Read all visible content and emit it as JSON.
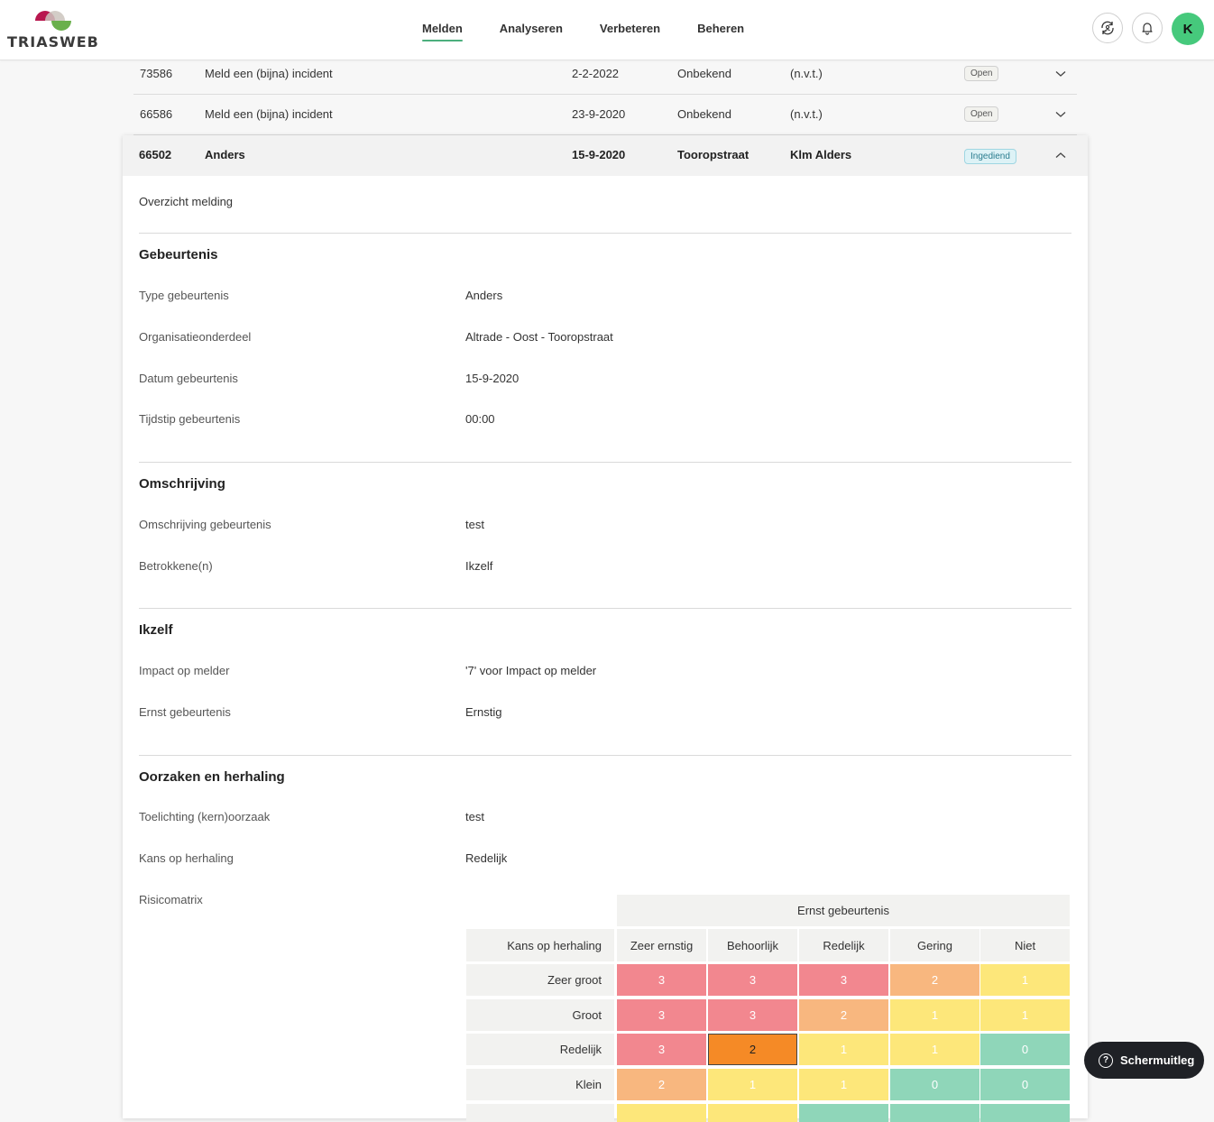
{
  "header": {
    "logo_text": "TRIASWEB",
    "nav": [
      {
        "label": "Melden",
        "active": true
      },
      {
        "label": "Analyseren",
        "active": false
      },
      {
        "label": "Verbeteren",
        "active": false
      },
      {
        "label": "Beheren",
        "active": false
      }
    ],
    "avatar_letter": "K",
    "avatar_color": "#46c97c",
    "accent_color": "#4caf7d"
  },
  "rows": [
    {
      "id": "73586",
      "type": "Meld een (bijna) incident",
      "date": "2-2-2022",
      "location": "Onbekend",
      "person": "(n.v.t.)",
      "status": "Open"
    },
    {
      "id": "66586",
      "type": "Meld een (bijna) incident",
      "date": "23-9-2020",
      "location": "Onbekend",
      "person": "(n.v.t.)",
      "status": "Open"
    }
  ],
  "expanded": {
    "id": "66502",
    "type": "Anders",
    "date": "15-9-2020",
    "location": "Tooropstraat",
    "person": "Klm Alders",
    "status": "Ingediend",
    "overview_label": "Overzicht melding",
    "sections": {
      "gebeurtenis": {
        "title": "Gebeurtenis",
        "fields": [
          {
            "label": "Type gebeurtenis",
            "value": "Anders"
          },
          {
            "label": "Organisatieonderdeel",
            "value": "Altrade - Oost - Tooropstraat"
          },
          {
            "label": "Datum gebeurtenis",
            "value": "15-9-2020"
          },
          {
            "label": "Tijdstip gebeurtenis",
            "value": "00:00"
          }
        ]
      },
      "omschrijving": {
        "title": "Omschrijving",
        "fields": [
          {
            "label": "Omschrijving gebeurtenis",
            "value": "test"
          },
          {
            "label": "Betrokkene(n)",
            "value": "Ikzelf"
          }
        ]
      },
      "ikzelf": {
        "title": "Ikzelf",
        "fields": [
          {
            "label": "Impact op melder",
            "value": "'7' voor Impact op melder"
          },
          {
            "label": "Ernst gebeurtenis",
            "value": "Ernstig"
          }
        ]
      },
      "oorzaken": {
        "title": "Oorzaken en herhaling",
        "fields": [
          {
            "label": "Toelichting (kern)oorzaak",
            "value": "test"
          },
          {
            "label": "Kans op herhaling",
            "value": "Redelijk"
          },
          {
            "label": "Risicomatrix",
            "value": ""
          }
        ]
      }
    },
    "matrix": {
      "col_group_label": "Ernst gebeurtenis",
      "row_header_label": "Kans op herhaling",
      "columns": [
        "Zeer ernstig",
        "Behoorlijk",
        "Redelijk",
        "Gering",
        "Niet"
      ],
      "rows": [
        {
          "label": "Zeer groot",
          "values": [
            "3",
            "3",
            "3",
            "2",
            "1"
          ]
        },
        {
          "label": "Groot",
          "values": [
            "3",
            "3",
            "2",
            "1",
            "1"
          ]
        },
        {
          "label": "Redelijk",
          "values": [
            "3",
            "2",
            "1",
            "1",
            "0"
          ]
        },
        {
          "label": "Klein",
          "values": [
            "2",
            "1",
            "1",
            "0",
            "0"
          ]
        }
      ],
      "selected": {
        "row": 2,
        "col": 1
      },
      "colors": {
        "3": "#f2878f",
        "2": "#f8b77f",
        "1": "#fde77a",
        "0": "#8fd6b9",
        "selected": "#f58a26"
      }
    }
  },
  "feedback_label": "Schermuitleg"
}
